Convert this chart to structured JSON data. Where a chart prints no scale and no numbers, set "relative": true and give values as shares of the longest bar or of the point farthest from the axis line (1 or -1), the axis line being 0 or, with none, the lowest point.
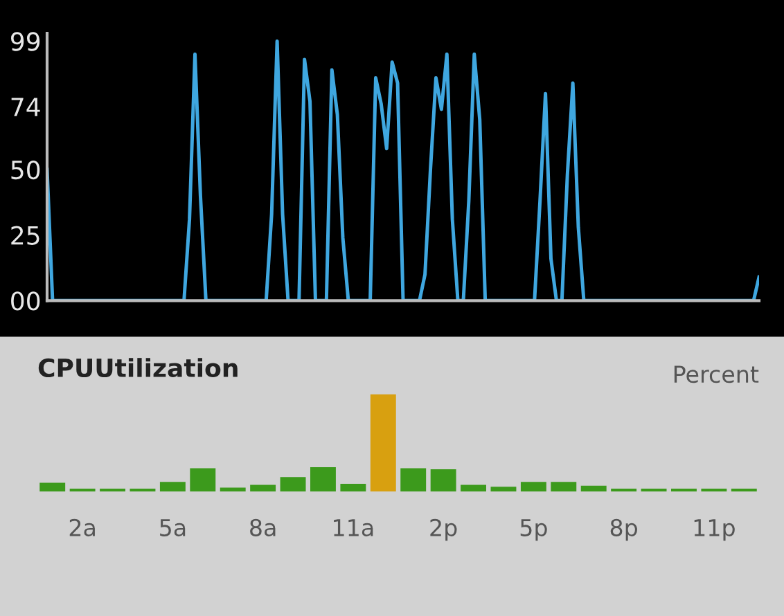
{
  "chart_data": [
    {
      "type": "line",
      "tick_labels": "y",
      "ylim": [
        0,
        102
      ],
      "yticks": [
        {
          "value": 0,
          "label": "00"
        },
        25,
        50,
        74,
        99
      ],
      "grid": false,
      "marker": "none",
      "line_style": "solid",
      "categories": [
        null,
        null,
        null,
        null,
        null,
        null,
        null,
        null,
        null,
        null,
        null,
        null,
        null,
        null,
        null,
        null,
        null,
        null,
        null,
        null,
        null,
        null,
        null,
        null,
        null,
        null,
        null,
        null,
        null,
        null,
        null,
        null,
        null,
        null,
        null,
        null,
        null,
        null,
        null,
        null,
        null,
        null,
        null,
        null,
        null,
        null,
        null,
        null,
        null,
        null,
        null,
        null,
        null,
        null,
        null,
        null,
        null,
        null,
        null,
        null,
        null,
        null,
        null,
        null,
        null,
        null,
        null,
        null,
        null,
        null,
        null,
        null,
        null,
        null,
        null,
        null,
        null,
        null,
        null,
        null,
        null,
        null,
        null,
        null,
        null,
        null,
        null,
        null,
        null,
        null,
        null,
        null,
        null,
        null,
        null,
        null,
        null,
        null,
        null,
        null,
        null,
        null,
        null,
        null,
        null,
        null,
        null,
        null,
        null,
        null,
        null,
        null,
        null,
        null,
        null,
        null,
        null,
        null,
        null,
        null,
        null,
        null,
        null,
        null,
        null,
        null,
        null,
        null,
        null,
        null,
        null
      ],
      "series": [
        {
          "color": "#3fa7e0",
          "values": [
            50,
            0,
            0,
            0,
            0,
            0,
            0,
            0,
            0,
            0,
            0,
            0,
            0,
            0,
            0,
            0,
            0,
            0,
            0,
            0,
            0,
            0,
            0,
            0,
            0,
            0,
            31,
            94,
            40,
            0,
            0,
            0,
            0,
            0,
            0,
            0,
            0,
            0,
            0,
            0,
            0,
            33,
            99,
            33,
            0,
            0,
            0,
            92,
            76,
            0,
            0,
            0,
            88,
            71,
            24,
            0,
            0,
            0,
            0,
            0,
            85,
            75,
            58,
            91,
            83,
            0,
            0,
            0,
            0,
            10,
            50,
            85,
            73,
            94,
            31,
            0,
            0,
            38,
            94,
            69,
            0,
            0,
            0,
            0,
            0,
            0,
            0,
            0,
            0,
            0,
            38,
            79,
            16,
            0,
            0,
            48,
            83,
            28,
            0,
            0,
            0,
            0,
            0,
            0,
            0,
            0,
            0,
            0,
            0,
            0,
            0,
            0,
            0,
            0,
            0,
            0,
            0,
            0,
            0,
            0,
            0,
            0,
            0,
            0,
            0,
            0,
            0,
            0,
            0,
            0,
            9
          ]
        }
      ]
    },
    {
      "type": "bar",
      "relative": true,
      "title": "CPUUtilization",
      "ylabel": "Percent",
      "categories": [
        null,
        "2a",
        null,
        null,
        "5a",
        null,
        null,
        "8a",
        null,
        null,
        "11a",
        null,
        null,
        "2p",
        null,
        null,
        "5p",
        null,
        null,
        "8p",
        null,
        null,
        "11p",
        null
      ],
      "values": [
        0.09,
        0.03,
        0.03,
        0.03,
        0.1,
        0.24,
        0.04,
        0.07,
        0.15,
        0.25,
        0.08,
        1,
        0.24,
        0.23,
        0.07,
        0.05,
        0.1,
        0.1,
        0.06,
        0.03,
        0.03,
        0.03,
        0.03,
        0.03
      ],
      "colors": [
        "#3c9a1c",
        "#3c9a1c",
        "#3c9a1c",
        "#3c9a1c",
        "#3c9a1c",
        "#3c9a1c",
        "#3c9a1c",
        "#3c9a1c",
        "#3c9a1c",
        "#3c9a1c",
        "#3c9a1c",
        "#d8a010",
        "#3c9a1c",
        "#3c9a1c",
        "#3c9a1c",
        "#3c9a1c",
        "#3c9a1c",
        "#3c9a1c",
        "#3c9a1c",
        "#3c9a1c",
        "#3c9a1c",
        "#3c9a1c",
        "#3c9a1c",
        "#3c9a1c"
      ]
    }
  ]
}
